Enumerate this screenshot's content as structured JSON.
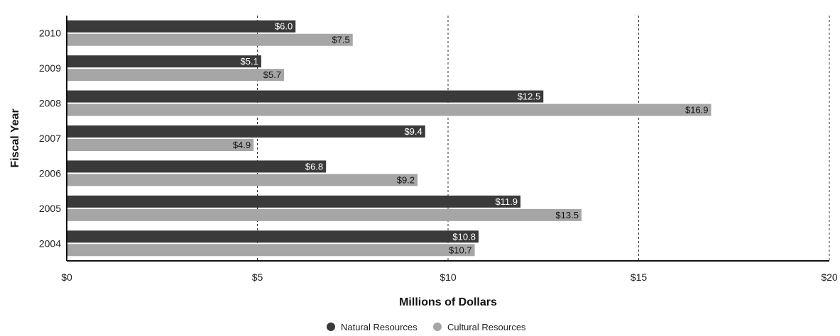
{
  "chart_data": {
    "type": "bar",
    "orientation": "horizontal",
    "categories": [
      "2010",
      "2009",
      "2008",
      "2007",
      "2006",
      "2005",
      "2004"
    ],
    "series": [
      {
        "name": "Natural Resources",
        "color": "#3a3a3a",
        "values": [
          6.0,
          5.1,
          12.5,
          9.4,
          6.8,
          11.9,
          10.8
        ],
        "labels": [
          "$6.0",
          "$5.1",
          "$12.5",
          "$9.4",
          "$6.8",
          "$11.9",
          "$10.8"
        ]
      },
      {
        "name": "Cultural Resources",
        "color": "#a6a6a6",
        "values": [
          7.5,
          5.7,
          16.9,
          4.9,
          9.2,
          13.5,
          10.7
        ],
        "labels": [
          "$7.5",
          "$5.7",
          "$16.9",
          "$4.9",
          "$9.2",
          "$13.5",
          "$10.7"
        ]
      }
    ],
    "xlabel": "Millions of Dollars",
    "ylabel": "Fiscal Year",
    "xlim": [
      0,
      20
    ],
    "xticks": [
      0,
      5,
      10,
      15,
      20
    ],
    "xtick_labels": [
      "$0",
      "$5",
      "$10",
      "$15",
      "$20"
    ],
    "grid": "vertical-dashed",
    "legend": "bottom-center"
  }
}
